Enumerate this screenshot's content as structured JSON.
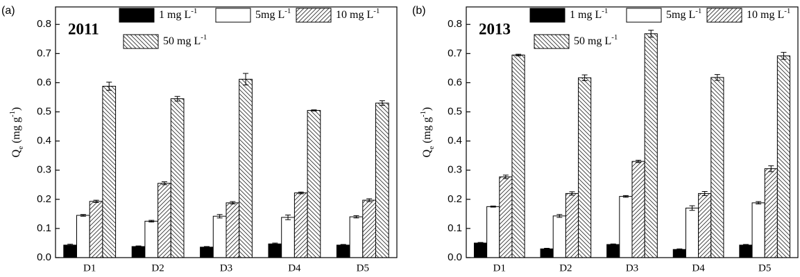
{
  "chart_data": [
    {
      "type": "bar",
      "panel": "(a)",
      "year": "2011",
      "y_label": {
        "main": "Q",
        "sub": "e",
        "unit": "(mg g",
        "sup": "-1",
        "end": ")"
      },
      "categories": [
        "D1",
        "D2",
        "D3",
        "D4",
        "D5"
      ],
      "series": [
        {
          "name": "1 mg L",
          "name_sup": "-1",
          "color": "#000000",
          "values": [
            0.043,
            0.038,
            0.036,
            0.047,
            0.043
          ],
          "errors": [
            0.003,
            0.002,
            0.002,
            0.003,
            0.002
          ]
        },
        {
          "name": "5mg L",
          "name_sup": "-1",
          "color": "#ffffff",
          "values": [
            0.145,
            0.125,
            0.142,
            0.138,
            0.14
          ],
          "errors": [
            0.003,
            0.003,
            0.006,
            0.008,
            0.004
          ]
        },
        {
          "name": "10 mg L",
          "name_sup": "-1",
          "color": "#ffffff",
          "hatch": "/",
          "values": [
            0.193,
            0.255,
            0.188,
            0.222,
            0.197
          ],
          "errors": [
            0.004,
            0.005,
            0.004,
            0.003,
            0.005
          ]
        },
        {
          "name": "50 mg L",
          "name_sup": "-1",
          "color": "#ffffff",
          "hatch": "\\",
          "values": [
            0.588,
            0.545,
            0.612,
            0.505,
            0.53
          ],
          "errors": [
            0.014,
            0.008,
            0.02,
            0.002,
            0.008
          ]
        }
      ],
      "ylim": [
        0,
        0.86
      ],
      "yticks": [
        {
          "value": 0,
          "label": "0.0"
        },
        0.1,
        0.2,
        0.3,
        0.4,
        0.5,
        0.6,
        0.7,
        0.8
      ]
    },
    {
      "type": "bar",
      "panel": "(b)",
      "year": "2013",
      "y_label": {
        "main": "Q",
        "sub": "e",
        "unit": "(mg g",
        "sup": "-1",
        "end": ")"
      },
      "categories": [
        "D1",
        "D2",
        "D3",
        "D4",
        "D5"
      ],
      "series": [
        {
          "name": "1 mg L",
          "name_sup": "-1",
          "color": "#000000",
          "values": [
            0.05,
            0.03,
            0.045,
            0.028,
            0.043
          ],
          "errors": [
            0.002,
            0.002,
            0.002,
            0.002,
            0.002
          ]
        },
        {
          "name": "5mg L",
          "name_sup": "-1",
          "color": "#ffffff",
          "values": [
            0.175,
            0.143,
            0.21,
            0.17,
            0.188
          ],
          "errors": [
            0.002,
            0.005,
            0.003,
            0.008,
            0.004
          ]
        },
        {
          "name": "10 mg L",
          "name_sup": "-1",
          "color": "#ffffff",
          "hatch": "/",
          "values": [
            0.277,
            0.22,
            0.33,
            0.22,
            0.305
          ],
          "errors": [
            0.006,
            0.006,
            0.004,
            0.007,
            0.01
          ]
        },
        {
          "name": "50 mg L",
          "name_sup": "-1",
          "color": "#ffffff",
          "hatch": "\\",
          "values": [
            0.695,
            0.617,
            0.768,
            0.618,
            0.692
          ],
          "errors": [
            0.003,
            0.01,
            0.012,
            0.01,
            0.012
          ]
        }
      ],
      "ylim": [
        0,
        0.86
      ],
      "yticks": [
        {
          "value": 0,
          "label": "0.0"
        },
        0.1,
        0.2,
        0.3,
        0.4,
        0.5,
        0.6,
        0.7,
        0.8
      ]
    }
  ]
}
